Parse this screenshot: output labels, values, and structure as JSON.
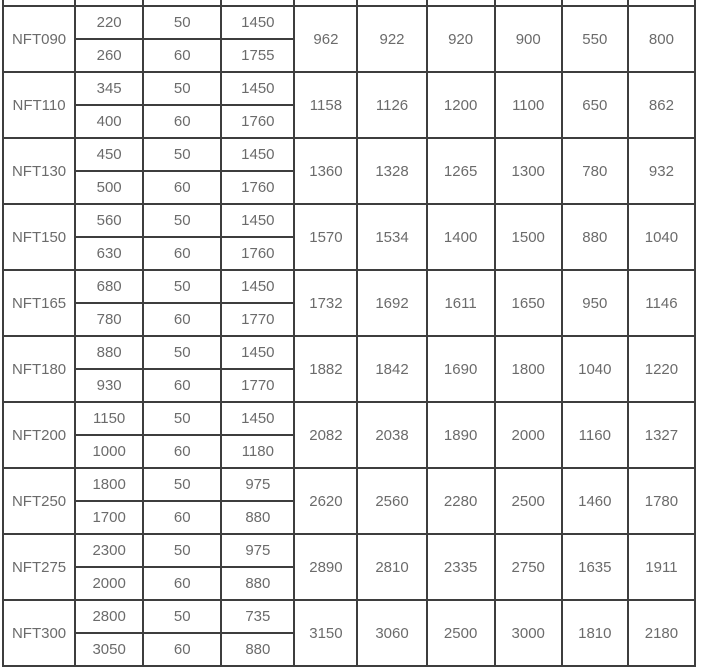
{
  "table": {
    "description": "Product specification table, cropped at top (header row not visible)",
    "colors": {
      "border": "#3e3e3e",
      "text": "#6b6b6b",
      "background": "#ffffff"
    },
    "columns_count": 10,
    "bands": [
      {
        "model": "NFT090",
        "sub_rows": [
          [
            "220",
            "50",
            "1450"
          ],
          [
            "260",
            "60",
            "1755"
          ]
        ],
        "merged_values": [
          "962",
          "922",
          "920",
          "900",
          "550",
          "800"
        ]
      },
      {
        "model": "NFT110",
        "sub_rows": [
          [
            "345",
            "50",
            "1450"
          ],
          [
            "400",
            "60",
            "1760"
          ]
        ],
        "merged_values": [
          "1158",
          "1126",
          "1200",
          "1100",
          "650",
          "862"
        ]
      },
      {
        "model": "NFT130",
        "sub_rows": [
          [
            "450",
            "50",
            "1450"
          ],
          [
            "500",
            "60",
            "1760"
          ]
        ],
        "merged_values": [
          "1360",
          "1328",
          "1265",
          "1300",
          "780",
          "932"
        ]
      },
      {
        "model": "NFT150",
        "sub_rows": [
          [
            "560",
            "50",
            "1450"
          ],
          [
            "630",
            "60",
            "1760"
          ]
        ],
        "merged_values": [
          "1570",
          "1534",
          "1400",
          "1500",
          "880",
          "1040"
        ]
      },
      {
        "model": "NFT165",
        "sub_rows": [
          [
            "680",
            "50",
            "1450"
          ],
          [
            "780",
            "60",
            "1770"
          ]
        ],
        "merged_values": [
          "1732",
          "1692",
          "1611",
          "1650",
          "950",
          "1146"
        ]
      },
      {
        "model": "NFT180",
        "sub_rows": [
          [
            "880",
            "50",
            "1450"
          ],
          [
            "930",
            "60",
            "1770"
          ]
        ],
        "merged_values": [
          "1882",
          "1842",
          "1690",
          "1800",
          "1040",
          "1220"
        ]
      },
      {
        "model": "NFT200",
        "sub_rows": [
          [
            "1150",
            "50",
            "1450"
          ],
          [
            "1000",
            "60",
            "1180"
          ]
        ],
        "merged_values": [
          "2082",
          "2038",
          "1890",
          "2000",
          "1160",
          "1327"
        ]
      },
      {
        "model": "NFT250",
        "sub_rows": [
          [
            "1800",
            "50",
            "975"
          ],
          [
            "1700",
            "60",
            "880"
          ]
        ],
        "merged_values": [
          "2620",
          "2560",
          "2280",
          "2500",
          "1460",
          "1780"
        ]
      },
      {
        "model": "NFT275",
        "sub_rows": [
          [
            "2300",
            "50",
            "975"
          ],
          [
            "2000",
            "60",
            "880"
          ]
        ],
        "merged_values": [
          "2890",
          "2810",
          "2335",
          "2750",
          "1635",
          "1911"
        ]
      },
      {
        "model": "NFT300",
        "sub_rows": [
          [
            "2800",
            "50",
            "735"
          ],
          [
            "3050",
            "60",
            "880"
          ]
        ],
        "merged_values": [
          "3150",
          "3060",
          "2500",
          "3000",
          "1810",
          "2180"
        ]
      }
    ]
  }
}
